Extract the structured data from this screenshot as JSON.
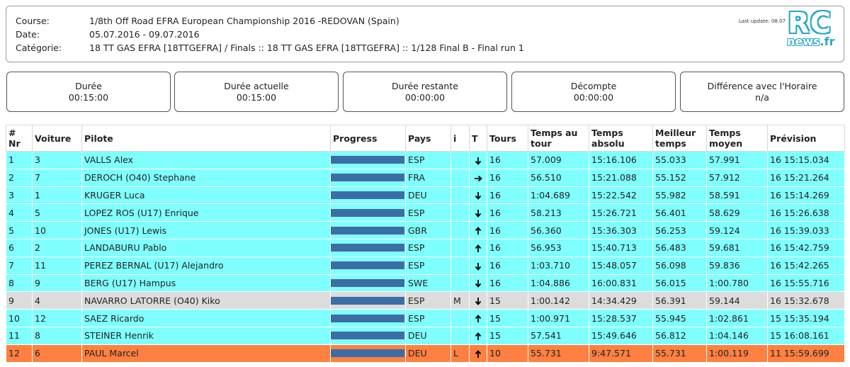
{
  "header": {
    "course_label": "Course:",
    "course_value": "1/8th Off Road EFRA European Championship 2016 -REDOVAN (Spain)",
    "date_label": "Date:",
    "date_value": "05.07.2016 - 09.07.2016",
    "category_label": "Catégorie:",
    "category_value": "18 TT GAS EFRA [18TTGEFRA] / Finals :: 18 TT GAS EFRA [18TTGEFRA] :: 1/128 Final B - Final run 1",
    "last_update": "Last update: 08.07",
    "logo_main": "RC",
    "logo_sub": "news",
    "logo_tld": ".fr"
  },
  "timers": [
    {
      "label": "Durée",
      "value": "00:15:00"
    },
    {
      "label": "Durée actuelle",
      "value": "00:15:00"
    },
    {
      "label": "Durée restante",
      "value": "00:00:00"
    },
    {
      "label": "Décompte",
      "value": "00:00:00"
    },
    {
      "label": "Différence avec l'Horaire",
      "value": "n/a"
    }
  ],
  "table": {
    "columns": [
      "# Nr",
      "Voiture",
      "Pilote",
      "Progress",
      "Pays",
      "i",
      "T",
      "Tours",
      "Temps au tour",
      "Temps absolu",
      "Meilleur temps",
      "Temps moyen",
      "Prévision"
    ],
    "rows": [
      {
        "pos": "1",
        "car": "3",
        "driver": "VALLS Alex",
        "progress": 1.0,
        "country": "ESP",
        "info": "",
        "trend": "down",
        "laps": "16",
        "lap_time": "57.009",
        "abs_time": "15:16.106",
        "best": "55.033",
        "avg": "57.991",
        "forecast": "16 15:15.034",
        "row_color": "c"
      },
      {
        "pos": "2",
        "car": "7",
        "driver": "DEROCH (O40) Stephane",
        "progress": 1.0,
        "country": "FRA",
        "info": "",
        "trend": "right",
        "laps": "16",
        "lap_time": "56.510",
        "abs_time": "15:21.088",
        "best": "55.152",
        "avg": "57.912",
        "forecast": "16 15:21.264",
        "row_color": "c"
      },
      {
        "pos": "3",
        "car": "1",
        "driver": "KRUGER Luca",
        "progress": 1.0,
        "country": "DEU",
        "info": "",
        "trend": "down",
        "laps": "16",
        "lap_time": "1:04.689",
        "abs_time": "15:22.542",
        "best": "55.982",
        "avg": "58.591",
        "forecast": "16 15:14.269",
        "row_color": "c"
      },
      {
        "pos": "4",
        "car": "5",
        "driver": "LOPEZ ROS (U17) Enrique",
        "progress": 1.0,
        "country": "ESP",
        "info": "",
        "trend": "down",
        "laps": "16",
        "lap_time": "58.213",
        "abs_time": "15:26.721",
        "best": "56.401",
        "avg": "58.629",
        "forecast": "16 15:26.638",
        "row_color": "c"
      },
      {
        "pos": "5",
        "car": "10",
        "driver": "JONES (U17) Lewis",
        "progress": 1.0,
        "country": "GBR",
        "info": "",
        "trend": "up",
        "laps": "16",
        "lap_time": "56.360",
        "abs_time": "15:36.303",
        "best": "56.253",
        "avg": "59.124",
        "forecast": "16 15:39.033",
        "row_color": "c"
      },
      {
        "pos": "6",
        "car": "2",
        "driver": "LANDABURU Pablo",
        "progress": 1.0,
        "country": "ESP",
        "info": "",
        "trend": "up",
        "laps": "16",
        "lap_time": "56.953",
        "abs_time": "15:40.713",
        "best": "56.483",
        "avg": "59.681",
        "forecast": "16 15:42.759",
        "row_color": "c"
      },
      {
        "pos": "7",
        "car": "11",
        "driver": "PEREZ BERNAL (U17) Alejandro",
        "progress": 1.0,
        "country": "ESP",
        "info": "",
        "trend": "down",
        "laps": "16",
        "lap_time": "1:03.710",
        "abs_time": "15:48.057",
        "best": "56.098",
        "avg": "59.836",
        "forecast": "16 15:42.265",
        "row_color": "c"
      },
      {
        "pos": "8",
        "car": "9",
        "driver": "BERG (U17) Hampus",
        "progress": 1.0,
        "country": "SWE",
        "info": "",
        "trend": "down",
        "laps": "16",
        "lap_time": "1:04.886",
        "abs_time": "16:00.831",
        "best": "56.015",
        "avg": "1:00.780",
        "forecast": "16 15:55.716",
        "row_color": "c"
      },
      {
        "pos": "9",
        "car": "4",
        "driver": "NAVARRO LATORRE (O40) Kiko",
        "progress": 1.0,
        "country": "ESP",
        "info": "M",
        "trend": "down",
        "laps": "15",
        "lap_time": "1:00.142",
        "abs_time": "14:34.429",
        "best": "56.391",
        "avg": "59.144",
        "forecast": "16 15:32.678",
        "row_color": "g"
      },
      {
        "pos": "10",
        "car": "12",
        "driver": "SAEZ Ricardo",
        "progress": 1.0,
        "country": "ESP",
        "info": "",
        "trend": "up",
        "laps": "15",
        "lap_time": "1:00.971",
        "abs_time": "15:28.537",
        "best": "55.945",
        "avg": "1:02.861",
        "forecast": "15 15:35.194",
        "row_color": "c"
      },
      {
        "pos": "11",
        "car": "8",
        "driver": "STEINER Henrik",
        "progress": 1.0,
        "country": "DEU",
        "info": "",
        "trend": "up",
        "laps": "15",
        "lap_time": "57.541",
        "abs_time": "15:49.646",
        "best": "56.812",
        "avg": "1:04.146",
        "forecast": "15 16:08.161",
        "row_color": "c"
      },
      {
        "pos": "12",
        "car": "6",
        "driver": "PAUL Marcel",
        "progress": 1.0,
        "country": "DEU",
        "info": "L",
        "trend": "up",
        "laps": "10",
        "lap_time": "55.731",
        "abs_time": "9:47.571",
        "best": "55.731",
        "avg": "1:00.119",
        "forecast": "11 15:59.699",
        "row_color": "o"
      }
    ]
  },
  "colors": {
    "row_cyan": "#80ffff",
    "row_grey": "#dcdcdc",
    "row_orange": "#ff8040",
    "progress_bar": "#3a6ea5",
    "logo_accent": "#2aa8c8"
  }
}
